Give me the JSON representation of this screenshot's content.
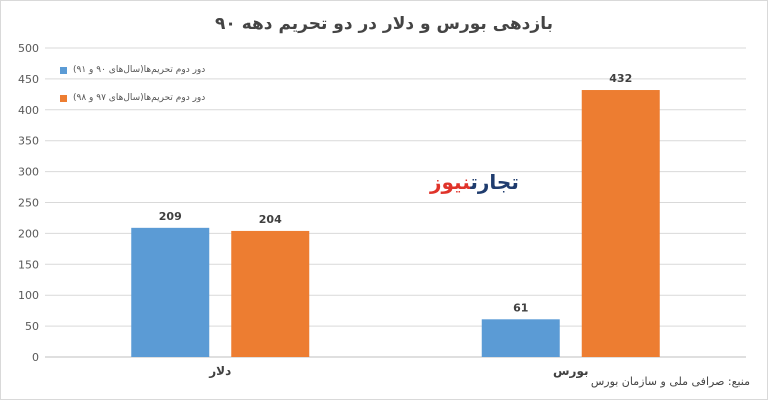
{
  "title": "بازدهی بورس و دلار در دو تحریم دهه ۹۰",
  "source_text": "منبع: صرافی ملی و سازمان بورس",
  "logo": {
    "part1": "تجارت",
    "part2": "نیوز"
  },
  "chart_data": {
    "type": "bar",
    "title": "بازدهی بورس و دلار در دو تحریم دهه ۹۰",
    "categories": [
      "دلار",
      "بورس"
    ],
    "series": [
      {
        "name": "دور دوم تحریم‌ها(سال‌های ۹۰ و ۹۱)",
        "values": [
          209,
          61
        ],
        "color": "#5b9bd5"
      },
      {
        "name": "دور دوم تحریم‌ها(سال‌های ۹۷ و ۹۸)",
        "values": [
          204,
          432
        ],
        "color": "#ed7d31"
      }
    ],
    "ylim": [
      0,
      500
    ],
    "yticks": [
      0,
      50,
      100,
      150,
      200,
      250,
      300,
      350,
      400,
      450,
      500
    ],
    "grid": true,
    "legend_position": "top-left",
    "data_labels": true
  }
}
